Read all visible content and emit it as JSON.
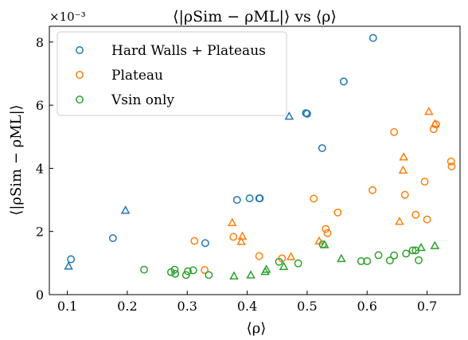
{
  "chart_data": {
    "type": "scatter",
    "title": "⟨|ρSim − ρML|⟩ vs ⟨ρ⟩",
    "xlabel": "⟨ρ⟩",
    "ylabel": "⟨|ρSim − ρML|⟩",
    "y_multiplier": "×10⁻³",
    "xlim": [
      0.07,
      0.755
    ],
    "ylim": [
      0,
      8.5
    ],
    "x_ticks": [
      "0.1",
      "0.2",
      "0.3",
      "0.4",
      "0.5",
      "0.6",
      "0.7"
    ],
    "y_ticks": [
      "0",
      "2",
      "4",
      "6",
      "8"
    ],
    "grid": false,
    "legend_position": "top-left",
    "colors": {
      "hard_walls": "#1f77b4",
      "plateau": "#ff7f0e",
      "vsin": "#2ca02c"
    },
    "series": [
      {
        "name": "Hard Walls + Plateaus",
        "color": "#1f77b4",
        "marker": "circle",
        "points": [
          {
            "x": 0.106,
            "y": 1.12
          },
          {
            "x": 0.176,
            "y": 1.79
          },
          {
            "x": 0.33,
            "y": 1.63
          },
          {
            "x": 0.383,
            "y": 3.0
          },
          {
            "x": 0.404,
            "y": 3.05
          },
          {
            "x": 0.42,
            "y": 3.05
          },
          {
            "x": 0.421,
            "y": 3.05
          },
          {
            "x": 0.498,
            "y": 5.75
          },
          {
            "x": 0.5,
            "y": 5.73
          },
          {
            "x": 0.525,
            "y": 4.64
          },
          {
            "x": 0.561,
            "y": 6.75
          },
          {
            "x": 0.61,
            "y": 8.13
          }
        ]
      },
      {
        "name": "Hard Walls + Plateaus",
        "color": "#1f77b4",
        "marker": "triangle",
        "points": [
          {
            "x": 0.102,
            "y": 0.9
          },
          {
            "x": 0.197,
            "y": 2.67
          },
          {
            "x": 0.47,
            "y": 5.65
          }
        ]
      },
      {
        "name": "Plateau",
        "color": "#ff7f0e",
        "marker": "circle",
        "points": [
          {
            "x": 0.312,
            "y": 1.7
          },
          {
            "x": 0.329,
            "y": 0.78
          },
          {
            "x": 0.377,
            "y": 1.83
          },
          {
            "x": 0.42,
            "y": 1.22
          },
          {
            "x": 0.458,
            "y": 1.15
          },
          {
            "x": 0.511,
            "y": 3.04
          },
          {
            "x": 0.531,
            "y": 2.08
          },
          {
            "x": 0.534,
            "y": 1.95
          },
          {
            "x": 0.551,
            "y": 2.6
          },
          {
            "x": 0.609,
            "y": 3.31
          },
          {
            "x": 0.645,
            "y": 5.15
          },
          {
            "x": 0.663,
            "y": 3.16
          },
          {
            "x": 0.681,
            "y": 2.53
          },
          {
            "x": 0.696,
            "y": 3.58
          },
          {
            "x": 0.7,
            "y": 2.38
          },
          {
            "x": 0.711,
            "y": 5.24
          },
          {
            "x": 0.715,
            "y": 5.39
          },
          {
            "x": 0.74,
            "y": 4.22
          },
          {
            "x": 0.741,
            "y": 4.06
          }
        ]
      },
      {
        "name": "Plateau",
        "color": "#ff7f0e",
        "marker": "triangle",
        "points": [
          {
            "x": 0.375,
            "y": 2.28
          },
          {
            "x": 0.392,
            "y": 1.85
          },
          {
            "x": 0.39,
            "y": 1.68
          },
          {
            "x": 0.473,
            "y": 1.2
          },
          {
            "x": 0.52,
            "y": 1.7
          },
          {
            "x": 0.654,
            "y": 2.32
          },
          {
            "x": 0.661,
            "y": 4.36
          },
          {
            "x": 0.66,
            "y": 3.94
          },
          {
            "x": 0.703,
            "y": 5.8
          },
          {
            "x": 0.713,
            "y": 5.41
          }
        ]
      },
      {
        "name": "Vsin only",
        "color": "#2ca02c",
        "marker": "circle",
        "points": [
          {
            "x": 0.228,
            "y": 0.79
          },
          {
            "x": 0.273,
            "y": 0.71
          },
          {
            "x": 0.279,
            "y": 0.79
          },
          {
            "x": 0.28,
            "y": 0.66
          },
          {
            "x": 0.298,
            "y": 0.62
          },
          {
            "x": 0.301,
            "y": 0.74
          },
          {
            "x": 0.31,
            "y": 0.77
          },
          {
            "x": 0.336,
            "y": 0.62
          },
          {
            "x": 0.453,
            "y": 1.04
          },
          {
            "x": 0.485,
            "y": 0.99
          },
          {
            "x": 0.526,
            "y": 1.59
          },
          {
            "x": 0.59,
            "y": 1.06
          },
          {
            "x": 0.6,
            "y": 1.06
          },
          {
            "x": 0.619,
            "y": 1.25
          },
          {
            "x": 0.638,
            "y": 1.08
          },
          {
            "x": 0.645,
            "y": 1.24
          },
          {
            "x": 0.665,
            "y": 1.3
          },
          {
            "x": 0.676,
            "y": 1.4
          },
          {
            "x": 0.681,
            "y": 1.4
          },
          {
            "x": 0.686,
            "y": 1.09
          }
        ]
      },
      {
        "name": "Vsin only",
        "color": "#2ca02c",
        "marker": "triangle",
        "points": [
          {
            "x": 0.378,
            "y": 0.59
          },
          {
            "x": 0.406,
            "y": 0.62
          },
          {
            "x": 0.43,
            "y": 0.73
          },
          {
            "x": 0.432,
            "y": 0.8
          },
          {
            "x": 0.461,
            "y": 0.89
          },
          {
            "x": 0.529,
            "y": 1.58
          },
          {
            "x": 0.557,
            "y": 1.14
          },
          {
            "x": 0.69,
            "y": 1.49
          },
          {
            "x": 0.713,
            "y": 1.55
          }
        ]
      }
    ],
    "legend": [
      {
        "label": "Hard Walls + Plateaus",
        "color": "#1f77b4"
      },
      {
        "label": "Plateau",
        "color": "#ff7f0e"
      },
      {
        "label": "Vsin only",
        "color": "#2ca02c"
      }
    ]
  }
}
